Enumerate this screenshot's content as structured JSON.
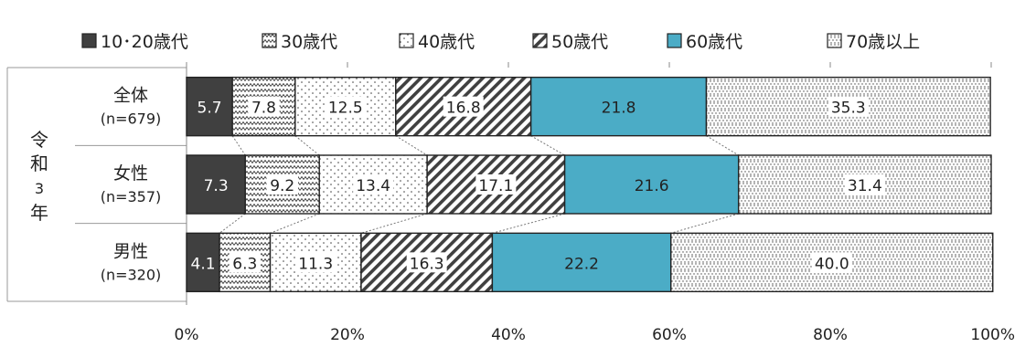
{
  "chart_data": {
    "type": "bar",
    "orientation": "horizontal",
    "stacked": true,
    "stacked_percent": true,
    "group_label": "令和3年",
    "group_label_chars": [
      "令",
      "和",
      "3",
      "年"
    ],
    "categories": [
      {
        "name": "全体",
        "n": "(n=679)"
      },
      {
        "name": "女性",
        "n": "(n=357)"
      },
      {
        "name": "男性",
        "n": "(n=320)"
      }
    ],
    "series": [
      {
        "name": "10･20歳代",
        "legend": "10･20歳代",
        "values": [
          5.7,
          7.3,
          4.1
        ],
        "labels": [
          "5.7",
          "7.3",
          "4.1"
        ],
        "pattern": "solid-dark",
        "color": "#404040"
      },
      {
        "name": "30歳代",
        "legend": "30歳代",
        "values": [
          7.8,
          9.2,
          6.3
        ],
        "labels": [
          "7.8",
          "9.2",
          "6.3"
        ],
        "pattern": "zigzag",
        "color": "#ffffff"
      },
      {
        "name": "40歳代",
        "legend": "40歳代",
        "values": [
          12.5,
          13.4,
          11.3
        ],
        "labels": [
          "12.5",
          "13.4",
          "11.3"
        ],
        "pattern": "sparse-dots",
        "color": "#ffffff"
      },
      {
        "name": "50歳代",
        "legend": "50歳代",
        "values": [
          16.8,
          17.1,
          16.3
        ],
        "labels": [
          "16.8",
          "17.1",
          "16.3"
        ],
        "pattern": "diagonal-stripes",
        "color": "#ffffff"
      },
      {
        "name": "60歳代",
        "legend": "60歳代",
        "values": [
          21.8,
          21.6,
          22.2
        ],
        "labels": [
          "21.8",
          "21.6",
          "22.2"
        ],
        "pattern": "solid-teal",
        "color": "#4bacc6"
      },
      {
        "name": "70歳以上",
        "legend": "70歳以上",
        "values": [
          35.3,
          31.4,
          40.0
        ],
        "labels": [
          "35.3",
          "31.4",
          "40.0"
        ],
        "pattern": "diamond-dots",
        "color": "#ffffff"
      }
    ],
    "xlim": [
      0,
      100
    ],
    "x_ticks": [
      "0%",
      "20%",
      "40%",
      "60%",
      "80%",
      "100%"
    ],
    "series_lines": true,
    "legend_position": "top",
    "grid": false
  }
}
